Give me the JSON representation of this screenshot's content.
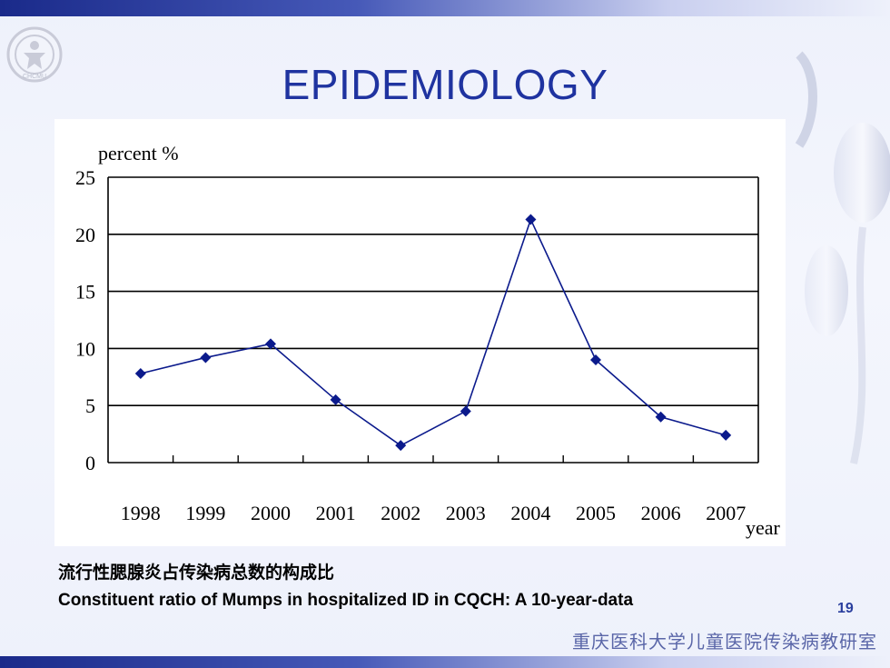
{
  "slide": {
    "title": "EPIDEMIOLOGY",
    "caption_cn": "流行性腮腺炎占传染病总数的构成比",
    "caption_en": "Constituent ratio of Mumps in hospitalized ID in CQCH: A 10-year-data",
    "page_number": "19",
    "footer_org": "重庆医科大学儿童医院传染病教研室",
    "logo_text": "CHCMU"
  },
  "colors": {
    "title": "#1f33a0",
    "series": "#0b1a8c",
    "grid": "#000000"
  },
  "chart_data": {
    "type": "line",
    "title": "",
    "xlabel": "year",
    "ylabel": "percent %",
    "ylim": [
      0,
      25
    ],
    "yticks": [
      0,
      5,
      10,
      15,
      20,
      25
    ],
    "categories": [
      "1998",
      "1999",
      "2000",
      "2001",
      "2002",
      "2003",
      "2004",
      "2005",
      "2006",
      "2007"
    ],
    "series": [
      {
        "values": [
          7.8,
          9.2,
          10.4,
          5.5,
          1.5,
          4.5,
          21.3,
          9.0,
          4.0,
          2.4
        ]
      }
    ],
    "grid": "horizontal",
    "marker": "diamond"
  }
}
